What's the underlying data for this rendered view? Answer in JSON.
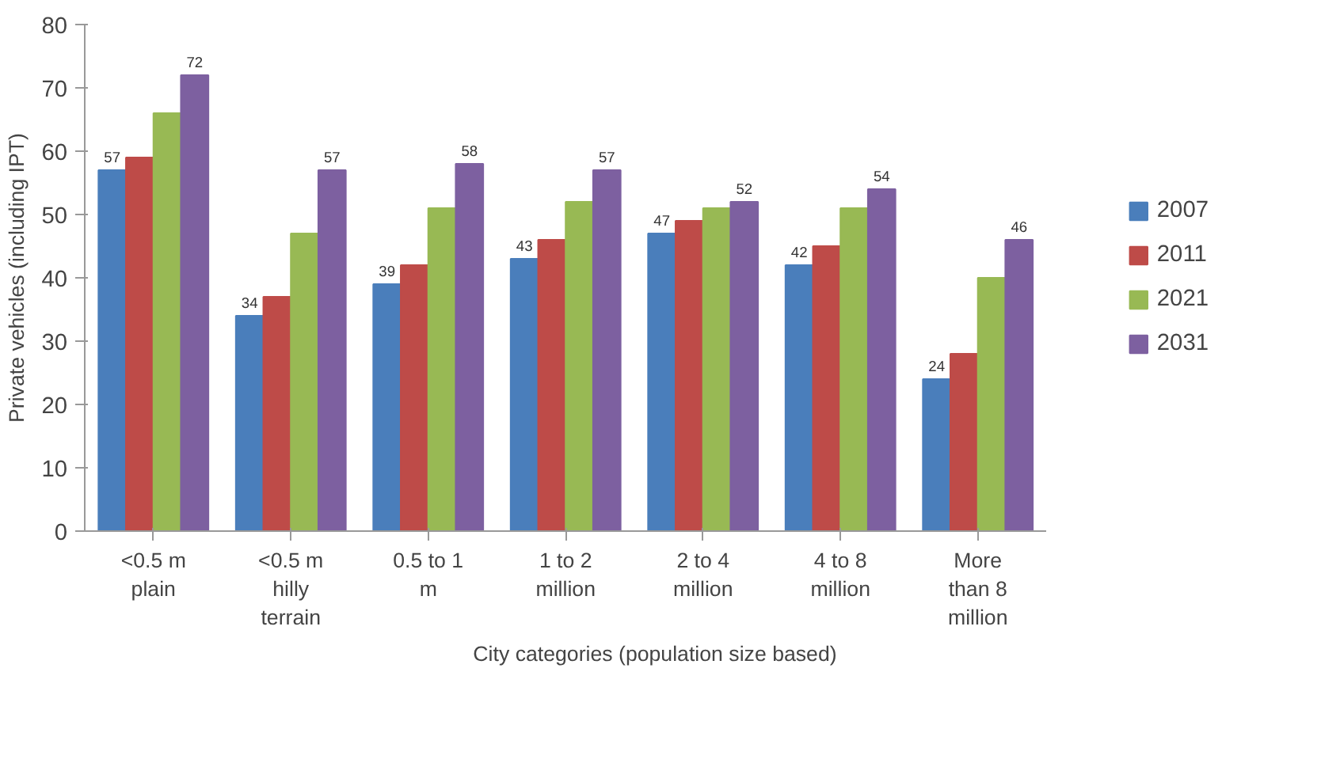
{
  "chart_data": {
    "type": "bar",
    "xlabel": "City categories (population size based)",
    "ylabel": "Private vehicles (including IPT)",
    "categories": [
      "<0.5 m\nplain",
      "<0.5 m\nhilly\nterrain",
      "0.5 to 1\nm",
      "1 to 2\nmillion",
      "2 to 4\nmillion",
      "4 to 8\nmillion",
      "More\nthan 8\nmillion"
    ],
    "series": [
      {
        "name": "2007",
        "color": "#4a7ebb",
        "values": [
          57,
          34,
          39,
          43,
          47,
          42,
          24
        ],
        "value_labels": [
          "57",
          "34",
          "39",
          "43",
          "47",
          "42",
          "24"
        ]
      },
      {
        "name": "2011",
        "color": "#be4b48",
        "values": [
          59,
          37,
          42,
          46,
          49,
          45,
          28
        ]
      },
      {
        "name": "2021",
        "color": "#98b954",
        "values": [
          66,
          47,
          51,
          52,
          51,
          51,
          40
        ]
      },
      {
        "name": "2031",
        "color": "#7d60a0",
        "values": [
          72,
          57,
          58,
          57,
          52,
          54,
          46
        ],
        "value_labels": [
          "72",
          "57",
          "58",
          "57",
          "52",
          "54",
          "46"
        ]
      }
    ],
    "ylim": [
      0,
      80
    ],
    "yticks": [
      0,
      10,
      20,
      30,
      40,
      50,
      60,
      70,
      80
    ],
    "grid": false,
    "legend": "right"
  }
}
